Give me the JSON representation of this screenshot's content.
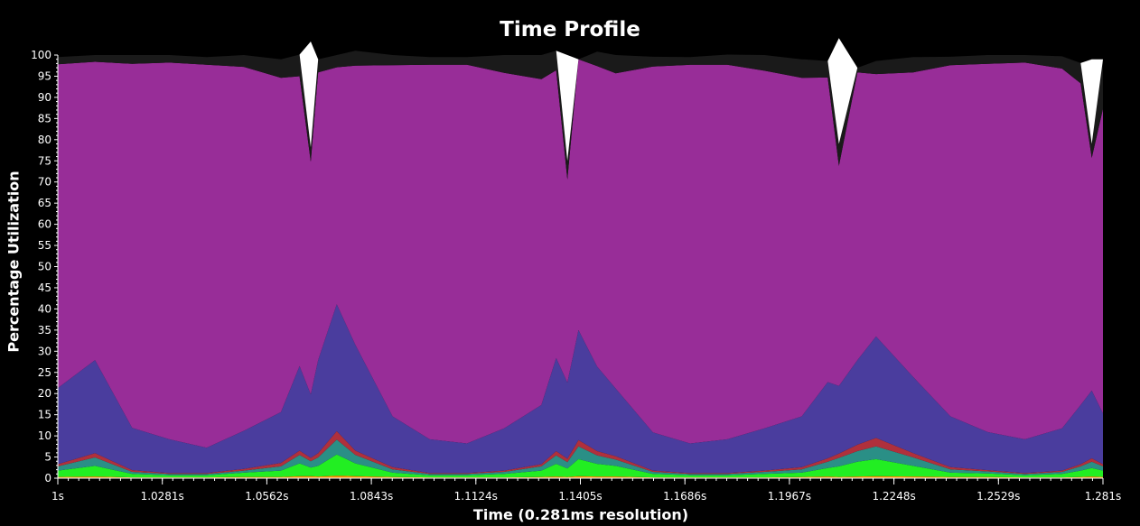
{
  "chart_data": {
    "type": "area",
    "title": "Time Profile",
    "xlabel": "Time (0.281ms resolution)",
    "ylabel": "Percentage Utilization",
    "xlim": [
      1.0,
      1.281
    ],
    "ylim": [
      0,
      100
    ],
    "x_ticks": [
      {
        "value": 1.0,
        "label": "1s"
      },
      {
        "value": 1.0281,
        "label": "1.0281s"
      },
      {
        "value": 1.0562,
        "label": "1.0562s"
      },
      {
        "value": 1.0843,
        "label": "1.0843s"
      },
      {
        "value": 1.1124,
        "label": "1.1124s"
      },
      {
        "value": 1.1405,
        "label": "1.1405s"
      },
      {
        "value": 1.1686,
        "label": "1.1686s"
      },
      {
        "value": 1.1967,
        "label": "1.1967s"
      },
      {
        "value": 1.2248,
        "label": "1.2248s"
      },
      {
        "value": 1.2529,
        "label": "1.2529s"
      },
      {
        "value": 1.281,
        "label": "1.281s"
      }
    ],
    "y_ticks": [
      0,
      5,
      10,
      15,
      20,
      25,
      30,
      35,
      40,
      45,
      50,
      55,
      60,
      65,
      70,
      75,
      80,
      85,
      90,
      95,
      100
    ],
    "grid": false,
    "legend": "none",
    "series_colors": {
      "orange": "#ff8c00",
      "green": "#22ee22",
      "teal": "#2a8f86",
      "red": "#b0303c",
      "blue": "#4a3d9e",
      "purple": "#982d98",
      "dark": "#1a1a1a",
      "white": "#ffffff"
    },
    "x": [
      1.0,
      1.01,
      1.02,
      1.03,
      1.04,
      1.05,
      1.06,
      1.065,
      1.068,
      1.07,
      1.075,
      1.08,
      1.09,
      1.1,
      1.11,
      1.12,
      1.13,
      1.134,
      1.137,
      1.14,
      1.145,
      1.15,
      1.16,
      1.17,
      1.18,
      1.19,
      1.2,
      1.207,
      1.21,
      1.215,
      1.22,
      1.23,
      1.24,
      1.25,
      1.26,
      1.27,
      1.275,
      1.278,
      1.281
    ],
    "series": [
      {
        "name": "",
        "color": "#ff8c00",
        "values": [
          0.3,
          0.4,
          0.2,
          0.2,
          0.2,
          0.3,
          0.3,
          0.5,
          0.5,
          0.4,
          0.6,
          0.5,
          0.3,
          0.2,
          0.2,
          0.2,
          0.3,
          0.4,
          0.3,
          0.5,
          0.4,
          0.4,
          0.2,
          0.2,
          0.2,
          0.2,
          0.3,
          0.4,
          0.3,
          0.4,
          0.5,
          0.4,
          0.3,
          0.3,
          0.2,
          0.2,
          0.3,
          0.4,
          0.3
        ]
      },
      {
        "name": "",
        "color": "#22ee22",
        "values": [
          1.5,
          2.5,
          0.8,
          0.5,
          0.5,
          1.0,
          1.5,
          3.0,
          2.0,
          2.5,
          5.0,
          3.0,
          1.0,
          0.5,
          0.5,
          0.8,
          1.5,
          3.0,
          2.0,
          4.0,
          3.0,
          2.5,
          0.8,
          0.5,
          0.5,
          0.8,
          1.0,
          2.0,
          2.5,
          3.5,
          4.0,
          2.5,
          1.0,
          0.8,
          0.5,
          0.8,
          1.5,
          2.0,
          1.5
        ]
      },
      {
        "name": "",
        "color": "#2a8f86",
        "values": [
          1.0,
          2.0,
          0.5,
          0.3,
          0.3,
          0.5,
          1.0,
          2.0,
          1.5,
          2.0,
          3.5,
          2.0,
          0.8,
          0.3,
          0.3,
          0.5,
          1.0,
          2.0,
          1.5,
          3.0,
          2.0,
          1.5,
          0.5,
          0.3,
          0.3,
          0.5,
          0.8,
          1.5,
          2.0,
          2.5,
          3.0,
          2.0,
          0.8,
          0.5,
          0.3,
          0.5,
          1.0,
          1.5,
          1.0
        ]
      },
      {
        "name": "",
        "color": "#b0303c",
        "values": [
          0.5,
          1.0,
          0.4,
          0.2,
          0.2,
          0.4,
          0.8,
          1.0,
          0.8,
          1.0,
          2.0,
          1.0,
          0.5,
          0.2,
          0.2,
          0.3,
          0.5,
          1.0,
          0.8,
          1.5,
          1.0,
          0.8,
          0.3,
          0.2,
          0.2,
          0.3,
          0.5,
          0.8,
          1.0,
          1.5,
          2.0,
          1.0,
          0.5,
          0.3,
          0.2,
          0.3,
          0.5,
          0.8,
          0.5
        ]
      },
      {
        "name": "",
        "color": "#4a3d9e",
        "values": [
          18,
          22,
          10,
          8,
          6,
          9,
          12,
          20,
          15,
          22,
          30,
          25,
          12,
          8,
          7,
          10,
          14,
          22,
          18,
          26,
          20,
          16,
          9,
          7,
          8,
          10,
          12,
          18,
          16,
          20,
          24,
          18,
          12,
          9,
          8,
          10,
          14,
          16,
          12
        ]
      },
      {
        "name": "",
        "color": "#982d98",
        "values": [
          76.5,
          70.5,
          86.0,
          89.0,
          90.5,
          86.0,
          79.0,
          68.5,
          55.0,
          68.0,
          56.0,
          66.0,
          83.0,
          88.5,
          89.5,
          84.0,
          77.0,
          68.0,
          48.0,
          64.0,
          71.0,
          74.5,
          86.5,
          89.5,
          88.5,
          84.5,
          80.0,
          72.0,
          52.0,
          68.0,
          62.0,
          72.0,
          83.0,
          87.0,
          89.0,
          85.0,
          76.0,
          55.0,
          72.0
        ]
      },
      {
        "name": "",
        "color": "#1a1a1a",
        "values": [
          1.7,
          1.6,
          2.1,
          1.8,
          1.8,
          2.8,
          4.4,
          5.1,
          3.4,
          3.1,
          2.9,
          3.5,
          2.4,
          1.8,
          1.8,
          4.2,
          5.7,
          4.6,
          4.4,
          0.0,
          3.4,
          4.3,
          2.3,
          1.8,
          2.4,
          3.7,
          4.4,
          3.9,
          5.2,
          1.1,
          3.1,
          3.6,
          2.0,
          2.1,
          1.8,
          2.9,
          4.8,
          3.3,
          11.7
        ]
      },
      {
        "name": "",
        "color": "#ffffff",
        "values": [
          0,
          0,
          0,
          0,
          0,
          0,
          0,
          0,
          25.0,
          0,
          0,
          0,
          0,
          0,
          0,
          0,
          0,
          0,
          25.0,
          0,
          0,
          0,
          0,
          0,
          0,
          0,
          0,
          0,
          25.0,
          0,
          0,
          0,
          0,
          0,
          0,
          0,
          0,
          20.0,
          0
        ]
      }
    ]
  }
}
